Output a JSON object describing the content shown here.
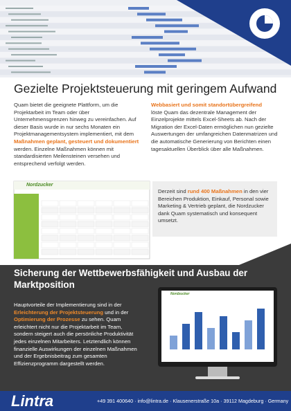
{
  "intro": {
    "title": "Gezielte Projektsteuerung mit geringem Aufwand",
    "left": [
      {
        "text": "Quam bietet die geeignete Plattform, um die Projektarbeit im Team oder über Unternehmensgrenzen hinweg zu vereinfachen. Auf dieser Basis wurde in nur sechs Monaten ein Projektmanagementsystem implementiert, mit dem "
      },
      {
        "text": "Maßnahmen geplant, gesteuert und dokumentiert",
        "highlight": true
      },
      {
        "text": " werden. Einzelne Maßnahmen können mit standardisierten Meilensteinen versehen und entsprechend verfolgt werden."
      }
    ],
    "right_heading": "Webbasiert und somit standortübergreifend",
    "right": "löste Quam das dezentrale Management der Einzelprojekte mittels Excel-Sheets ab. Nach der Migration der Excel-Daten ermöglichen nun gezielte Auswertungen der umfangreichen Datenmatrizen und die automatische Generierung von Berichten einen tagesaktuellen Überblick über alle Maßnahmen."
  },
  "screenshot": {
    "brand": "Nordzucker"
  },
  "callout": [
    {
      "text": "Derzeit sind "
    },
    {
      "text": "rund 400 Maßnahmen",
      "highlight": true
    },
    {
      "text": " in den vier Bereichen Produktion, Einkauf, Personal sowie Marketing & Vertrieb geplant, die Nordzucker dank Quam systematisch und konsequent umsetzt."
    }
  ],
  "section": {
    "title": "Sicherung der Wettbewerbsfähigkeit und Ausbau der Marktposition",
    "body": [
      {
        "text": "Hauptvorteile der Implementierung sind in der "
      },
      {
        "text": "Erleichterung der Projektsteuerung",
        "highlight": true
      },
      {
        "text": " und in der "
      },
      {
        "text": "Optimierung der Prozesse",
        "highlight": true
      },
      {
        "text": " zu sehen. Quam erleichtert nicht nur die Projektarbeit im Team, sondern steigert auch die persönliche Produktivität jedes einzelnen Mitarbeiters. Letztendlich können finanzielle Auswirkungen der einzelnen Maßnahmen und der Ergebnisbeitrag zum gesamten Effizienzprogramm dargestellt werden."
      }
    ],
    "monitor_brand": "Nordzucker"
  },
  "footer": {
    "logo": "Lintra",
    "contact": "+49 391 400640 · info@lintra.de · Klausenerstraße 10a · 39112 Magdeburg · Germany"
  }
}
